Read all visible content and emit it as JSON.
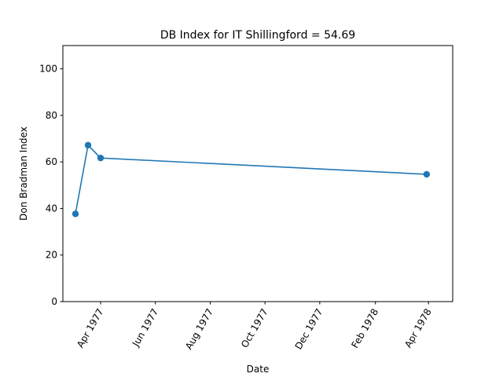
{
  "chart_data": {
    "type": "line",
    "title": "DB Index for IT Shillingford = 54.69",
    "xlabel": "Date",
    "ylabel": "Don Bradman Index",
    "ylim": [
      0,
      110
    ],
    "yticks": [
      0,
      20,
      40,
      60,
      80,
      100
    ],
    "xlim": [
      "1977-02-18",
      "1978-04-28"
    ],
    "xticks": [
      {
        "date": "1977-04-01",
        "label": "Apr 1977"
      },
      {
        "date": "1977-06-01",
        "label": "Jun 1977"
      },
      {
        "date": "1977-08-01",
        "label": "Aug 1977"
      },
      {
        "date": "1977-10-01",
        "label": "Oct 1977"
      },
      {
        "date": "1977-12-01",
        "label": "Dec 1977"
      },
      {
        "date": "1978-02-01",
        "label": "Feb 1978"
      },
      {
        "date": "1978-04-01",
        "label": "Apr 1978"
      }
    ],
    "series": [
      {
        "color": "#1f77b4",
        "marker": "circle",
        "points": [
          {
            "x": "1977-03-04",
            "y": 37.7
          },
          {
            "x": "1977-03-18",
            "y": 67.2
          },
          {
            "x": "1977-04-01",
            "y": 61.7
          },
          {
            "x": "1978-03-30",
            "y": 54.69
          }
        ]
      }
    ],
    "grid": false,
    "legend": "none"
  }
}
